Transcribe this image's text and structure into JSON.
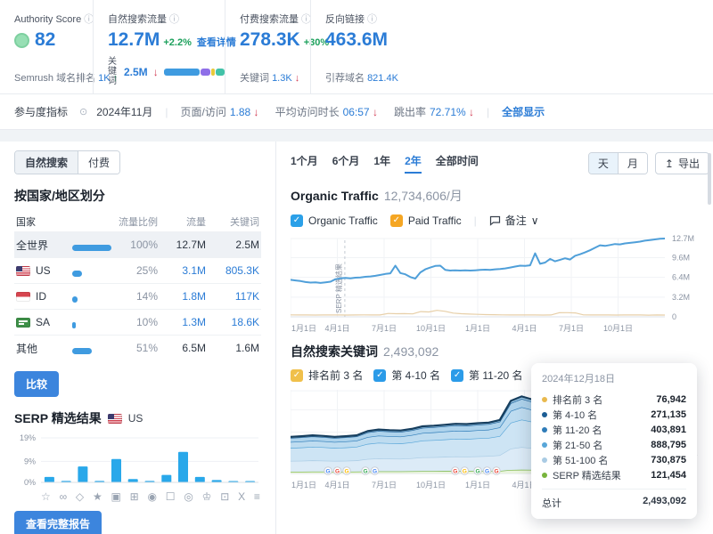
{
  "header": {
    "authority": {
      "label": "Authority Score",
      "score": "82",
      "footer_label": "Semrush 域名排名",
      "footer_value": "1K",
      "footer_arrow": "↑"
    },
    "organic": {
      "label": "自然搜索流量",
      "value": "12.7M",
      "delta": "+2.2%",
      "link": "查看详情",
      "kw_label": "关键词",
      "kw_value": "2.5M",
      "kw_arrow": "↓",
      "kw_bar": [
        {
          "color": "#3f9be0",
          "w": 40
        },
        {
          "color": "#8f6fe8",
          "w": 11
        },
        {
          "color": "#e8c93b",
          "w": 4
        },
        {
          "color": "#42c2a8",
          "w": 10
        }
      ]
    },
    "paid": {
      "label": "付费搜索流量",
      "value": "278.3K",
      "delta": "+30%",
      "footer_label": "关键词",
      "footer_value": "1.3K",
      "footer_arrow": "↓"
    },
    "backlinks": {
      "label": "反向链接",
      "value": "463.6M",
      "footer_label": "引荐域名",
      "footer_value": "821.4K"
    }
  },
  "engagement": {
    "label": "参与度指标",
    "period": "2024年11月",
    "metrics": [
      {
        "label": "页面/访问",
        "value": "1.88",
        "arrow": "↓"
      },
      {
        "label": "平均访问时长",
        "value": "06:57",
        "arrow": "↓"
      },
      {
        "label": "跳出率",
        "value": "72.71%",
        "arrow": "↓"
      }
    ],
    "show_all": "全部显示"
  },
  "left": {
    "tabs": [
      {
        "label": "自然搜索",
        "active": true
      },
      {
        "label": "付费",
        "active": false
      }
    ],
    "countries": {
      "title": "按国家/地区划分",
      "headers": [
        "国家",
        "流量比例",
        "流量",
        "关键词"
      ],
      "rows": [
        {
          "name": "全世界",
          "flag": "",
          "share": "100%",
          "share_pct": 100,
          "traffic": "12.7M",
          "keywords": "2.5M",
          "highlight": true,
          "link_values": false
        },
        {
          "name": "US",
          "flag": "us",
          "share": "25%",
          "share_pct": 25,
          "traffic": "3.1M",
          "keywords": "805.3K",
          "link_values": true
        },
        {
          "name": "ID",
          "flag": "id",
          "share": "14%",
          "share_pct": 14,
          "traffic": "1.8M",
          "keywords": "117K",
          "link_values": true
        },
        {
          "name": "SA",
          "flag": "sa",
          "share": "10%",
          "share_pct": 10,
          "traffic": "1.3M",
          "keywords": "18.6K",
          "link_values": true
        },
        {
          "name": "其他",
          "flag": "",
          "share": "51%",
          "share_pct": 51,
          "traffic": "6.5M",
          "keywords": "1.6M",
          "link_values": false
        }
      ],
      "compare_button": "比较"
    },
    "serp": {
      "title": "SERP 精选结果",
      "region": "US",
      "report_button": "查看完整报告"
    }
  },
  "right": {
    "range_tabs": [
      {
        "label": "1个月",
        "active": false
      },
      {
        "label": "6个月",
        "active": false
      },
      {
        "label": "1年",
        "active": false
      },
      {
        "label": "2年",
        "active": true
      },
      {
        "label": "全部时间",
        "active": false
      }
    ],
    "granularity": [
      {
        "label": "天",
        "active": true
      },
      {
        "label": "月",
        "active": false
      }
    ],
    "export_label": "导出",
    "export_icon": "↥",
    "organic_chart": {
      "title": "Organic Traffic",
      "subtitle": "12,734,606/月",
      "legend": [
        {
          "label": "Organic Traffic",
          "color": "#2ba0e8"
        },
        {
          "label": "Paid Traffic",
          "color": "#f5a623"
        }
      ],
      "notes_label": "备注",
      "notes_chevron": "∨",
      "check": "✓"
    },
    "keywords_chart": {
      "title": "自然搜索关键词",
      "subtitle": "2,493,092",
      "legend": [
        {
          "label": "排名前 3 名",
          "color": "#f0c04b"
        },
        {
          "label": "第 4-10 名",
          "color": "#2b9be8"
        },
        {
          "label": "第 11-20 名",
          "color": "#2b9be8"
        },
        {
          "label": "第 21-50 名",
          "color": "#2b9be8"
        },
        {
          "label": "第 51-100 名",
          "color": "#9fd0f0"
        }
      ]
    },
    "tooltip": {
      "date": "2024年12月18日",
      "rows": [
        {
          "label": "排名前 3 名",
          "value": "76,942",
          "color": "#e9b94e"
        },
        {
          "label": "第 4-10 名",
          "value": "271,135",
          "color": "#1c5d94"
        },
        {
          "label": "第 11-20 名",
          "value": "403,891",
          "color": "#2f7cb8"
        },
        {
          "label": "第 21-50 名",
          "value": "888,795",
          "color": "#58a6d8"
        },
        {
          "label": "第 51-100 名",
          "value": "730,875",
          "color": "#a9cbe4"
        },
        {
          "label": "SERP 精选结果",
          "value": "121,454",
          "color": "#78b43c"
        }
      ],
      "total_label": "总计",
      "total_value": "2,493,092"
    }
  },
  "chart_data": [
    {
      "id": "serp-featured",
      "type": "bar",
      "title": "SERP 精选结果 (US)",
      "ylim": [
        0,
        19
      ],
      "yticks": [
        {
          "v": 19,
          "label": "19%"
        },
        {
          "v": 9,
          "label": "9%"
        },
        {
          "v": 0,
          "label": "0%"
        }
      ],
      "bar_color": "#29a8ea",
      "categories": [
        "featured-snippet",
        "related-searches",
        "sitelinks",
        "reviews",
        "image",
        "image-pack",
        "video",
        "faq",
        "local-pack",
        "knowledge-panel",
        "top-stories",
        "twitter",
        "list"
      ],
      "icons": [
        "☆",
        "∞",
        "◇",
        "★",
        "▣",
        "⊞",
        "◉",
        "☐",
        "◎",
        "♔",
        "⊡",
        "X",
        "≡"
      ],
      "values": [
        2.3,
        0.6,
        6.8,
        0.6,
        10,
        1.4,
        0.6,
        3.2,
        13,
        2.3,
        1,
        0.2,
        0.5
      ]
    },
    {
      "id": "organic-traffic",
      "type": "line",
      "title": "Organic Traffic 12,734,606/月",
      "ylim": [
        0,
        12.7
      ],
      "yticks": [
        {
          "v": 12.7,
          "label": "12.7M"
        },
        {
          "v": 9.6,
          "label": "9.6M"
        },
        {
          "v": 6.4,
          "label": "6.4M"
        },
        {
          "v": 3.2,
          "label": "3.2M"
        },
        {
          "v": 0,
          "label": "0"
        }
      ],
      "xticks": [
        "1月1日",
        "4月1日",
        "7月1日",
        "10月1日",
        "1月1日",
        "4月1日",
        "7月1日",
        "10月1日"
      ],
      "annotation": {
        "label": "SERP 精选结果",
        "x": 0.145
      },
      "series": [
        {
          "name": "Organic Traffic",
          "color": "#4f9fd9",
          "values": [
            6.0,
            5.9,
            5.8,
            5.65,
            5.55,
            5.6,
            5.5,
            5.6,
            5.7,
            6.1,
            6.25,
            6.3,
            6.25,
            6.35,
            6.4,
            6.5,
            6.55,
            6.65,
            6.8,
            6.95,
            7.05,
            8.3,
            7.1,
            6.9,
            6.45,
            6.2,
            7.2,
            7.7,
            8.0,
            8.25,
            8.3,
            7.6,
            7.5,
            7.55,
            7.5,
            7.55,
            7.5,
            7.55,
            7.6,
            7.65,
            7.6,
            7.7,
            7.75,
            7.85,
            8.0,
            8.15,
            8.3,
            8.25,
            8.35,
            10.3,
            8.6,
            8.8,
            9.4,
            9.0,
            9.25,
            9.5,
            9.3,
            9.9,
            10.15,
            10.45,
            10.8,
            11.2,
            11.6,
            11.5,
            11.65,
            11.8,
            11.75,
            11.9,
            12.0,
            12.1,
            12.2,
            12.35,
            12.45,
            12.55,
            12.65,
            12.7
          ]
        },
        {
          "name": "Paid Traffic",
          "color": "#e7cfa8",
          "values": [
            0.32,
            0.3,
            0.31,
            0.29,
            0.3,
            0.31,
            0.3,
            0.29,
            0.3,
            0.32,
            0.3,
            0.31,
            0.55,
            0.5,
            0.52,
            0.48,
            0.85,
            0.8,
            1.05,
            0.9,
            0.6,
            0.5,
            0.45,
            0.4,
            0.36,
            0.34,
            0.32,
            0.31,
            0.3,
            0.31,
            0.3,
            0.29,
            0.3,
            0.66,
            0.68,
            0.64,
            0.32,
            0.3,
            0.31,
            0.3,
            0.29,
            0.3,
            0.31,
            0.3,
            0.28,
            0.3,
            0.29
          ]
        }
      ]
    },
    {
      "id": "organic-keywords",
      "type": "area",
      "title": "自然搜索关键词 2,493,092",
      "ylim": [
        0,
        2.63
      ],
      "yticks": [
        {
          "v": 2.6,
          "label": "2.6M"
        },
        {
          "v": 2.0,
          "label": "2M"
        },
        {
          "v": 1.3,
          "label": "1.3M"
        },
        {
          "v": 0.6564,
          "label": "656.4K"
        },
        {
          "v": 0,
          "label": "0"
        }
      ],
      "xticks": [
        "1月1日",
        "4月1日",
        "7月1日",
        "10月1日",
        "1月1日",
        "4月1日",
        "7月1日",
        "10月1日"
      ],
      "totals": [
        1.15,
        1.17,
        1.2,
        1.18,
        1.15,
        1.17,
        1.2,
        1.33,
        1.38,
        1.36,
        1.35,
        1.4,
        1.48,
        1.5,
        1.53,
        1.56,
        1.55,
        1.58,
        1.6,
        1.68,
        2.28,
        2.42,
        2.32,
        2.18,
        2.26,
        2.34,
        2.3,
        2.27,
        2.3,
        2.24,
        2.2,
        2.24,
        2.3,
        2.36,
        2.49
      ],
      "hover_x": 0.988,
      "google_updates_x": [
        0.1,
        0.125,
        0.15,
        0.2,
        0.225,
        0.44,
        0.465,
        0.5,
        0.525,
        0.55,
        0.7,
        0.725,
        0.78,
        0.85,
        0.875,
        0.93,
        0.99
      ],
      "bands": [
        {
          "name": "SERP 精选结果",
          "fraction": 0.049,
          "fill": "#eaf4df",
          "line": "#78b43c",
          "dot": "#78b43c"
        },
        {
          "name": "第 51-100 名",
          "fraction": 0.293,
          "fill": "#dcebf7",
          "line": "#a9cbe4",
          "dot": "#a9cbe4"
        },
        {
          "name": "第 21-50 名",
          "fraction": 0.357,
          "fill": "#cde4f4",
          "line": "#58a6d8",
          "dot": "#58a6d8"
        },
        {
          "name": "第 11-20 名",
          "fraction": 0.162,
          "fill": "#bedcf0",
          "line": "#2f7cb8",
          "dot": "#2f7cb8"
        },
        {
          "name": "第 4-10 名",
          "fraction": 0.109,
          "fill": "#aed3ec",
          "line": "#1c5d94",
          "dot": "#1c5d94"
        },
        {
          "name": "排名前 3 名",
          "fraction": 0.031,
          "fill": "#9ccae8",
          "line": "#163e5e",
          "dot": "#e9b94e"
        }
      ]
    }
  ]
}
